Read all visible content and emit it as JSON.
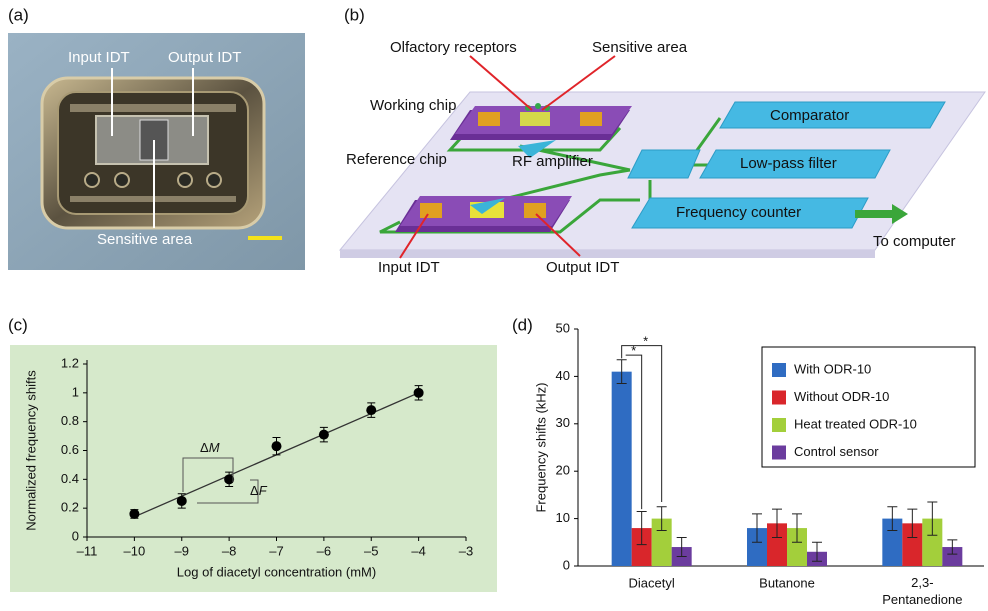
{
  "panel_labels": [
    "(a)",
    "(b)",
    "(c)",
    "(d)"
  ],
  "photo": {
    "labels": [
      "Input IDT",
      "Output IDT",
      "Sensitive area"
    ]
  },
  "diagram": {
    "labels": [
      "Olfactory receptors",
      "Sensitive area",
      "Working chip",
      "Comparator",
      "Reference chip",
      "RF amplifier",
      "Low-pass filter",
      "Frequency counter",
      "To computer",
      "Input IDT",
      "Output IDT"
    ]
  },
  "chart_data": [
    {
      "type": "scatter",
      "xlabel": "Log of diacetyl concentration (mM)",
      "ylabel": "Normalized frequency shifts",
      "x": [
        -10,
        -9,
        -8,
        -7,
        -6,
        -5,
        -4
      ],
      "y": [
        0.16,
        0.25,
        0.4,
        0.63,
        0.71,
        0.88,
        1.0
      ],
      "errors": [
        0.03,
        0.05,
        0.05,
        0.06,
        0.05,
        0.05,
        0.05
      ],
      "color": "#000000",
      "background": "#d6e9cb",
      "trendline": {
        "x": [
          -10,
          -4
        ],
        "y": [
          0.14,
          1.0
        ]
      },
      "xlim": [
        -11,
        -3
      ],
      "ylim": [
        0,
        1.2
      ],
      "xticks": [
        {
          "value": -11,
          "label": "–11"
        },
        {
          "value": -10,
          "label": "–10"
        },
        {
          "value": -9,
          "label": "–9"
        },
        {
          "value": -8,
          "label": "–8"
        },
        {
          "value": -7,
          "label": "–7"
        },
        {
          "value": -6,
          "label": "–6"
        },
        {
          "value": -5,
          "label": "–5"
        },
        {
          "value": -4,
          "label": "–4"
        },
        {
          "value": -3,
          "label": "–3"
        }
      ],
      "yticks": [
        0,
        0.2,
        0.4,
        0.6,
        0.8,
        1,
        1.2
      ],
      "annotations": [
        "ΔM",
        "ΔF"
      ]
    },
    {
      "type": "bar",
      "ylabel": "Frequency shifts (kHz)",
      "categories": [
        "Diacetyl",
        "Butanone",
        "2,3-Pentanedione"
      ],
      "series": [
        {
          "name": "With ODR-10",
          "color": "#2f6cc2",
          "values": [
            41,
            8,
            10
          ],
          "errors": [
            2.5,
            3,
            2.5
          ]
        },
        {
          "name": "Without ODR-10",
          "color": "#d9262b",
          "values": [
            8,
            9,
            9
          ],
          "errors": [
            3.5,
            3,
            3
          ]
        },
        {
          "name": "Heat treated ODR-10",
          "color": "#a3cf3b",
          "values": [
            10,
            8,
            10
          ],
          "errors": [
            2.5,
            3,
            3.5
          ]
        },
        {
          "name": "Control sensor",
          "color": "#6b3c9e",
          "values": [
            4,
            3,
            4
          ],
          "errors": [
            2,
            2,
            1.5
          ]
        }
      ],
      "ylim": [
        0,
        50
      ],
      "yticks": [
        0,
        10,
        20,
        30,
        40,
        50
      ],
      "legend": "upper right",
      "annotations": [
        "*",
        "*"
      ]
    }
  ]
}
